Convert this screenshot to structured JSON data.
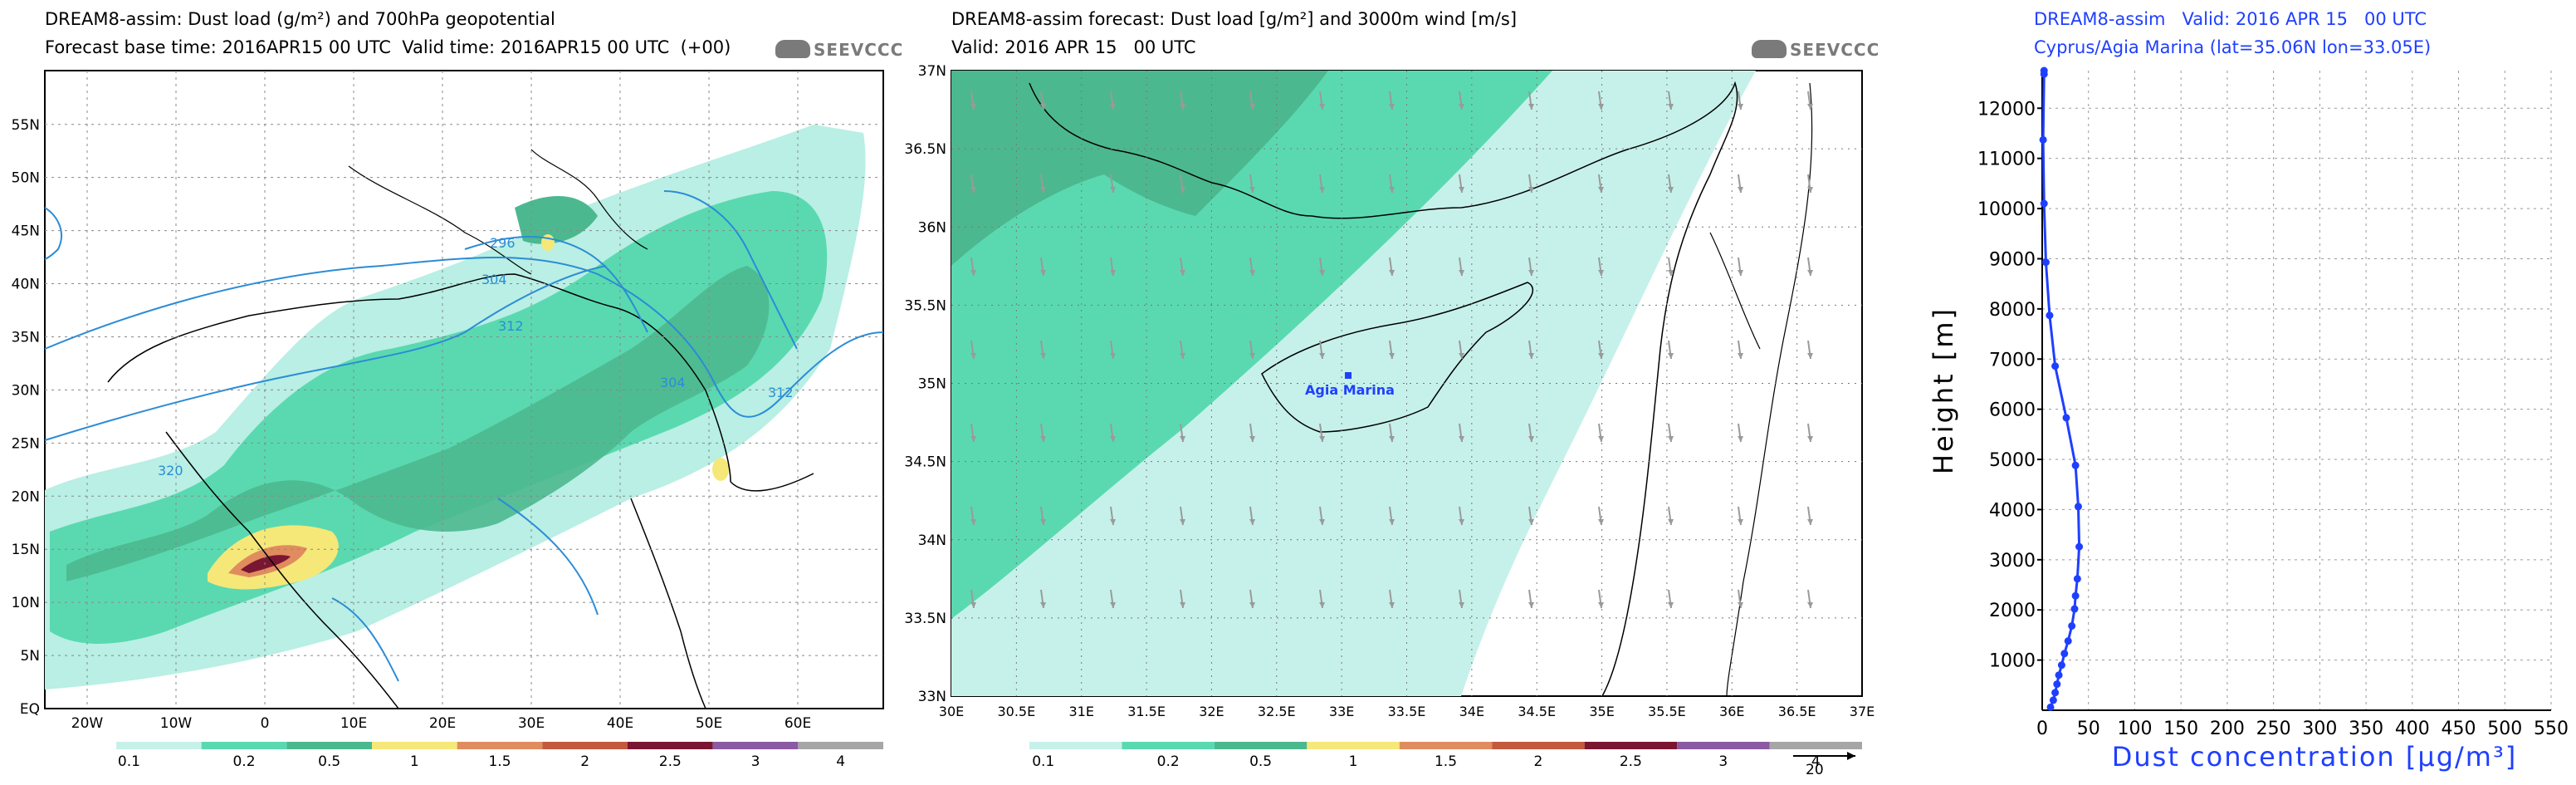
{
  "panel1": {
    "title": "DREAM8-assim: Dust load (g/m²) and 700hPa geopotential",
    "subtitle": "Forecast base time: 2016APR15 00 UTC  Valid time: 2016APR15 00 UTC  (+00)",
    "logo": "SEEVCCC",
    "lat_labels": [
      "EQ",
      "5N",
      "10N",
      "15N",
      "20N",
      "25N",
      "30N",
      "35N",
      "40N",
      "45N",
      "50N",
      "55N"
    ],
    "lon_labels": [
      "20W",
      "10W",
      "0",
      "10E",
      "20E",
      "30E",
      "40E",
      "50E",
      "60E"
    ],
    "contour_labels": [
      "296",
      "304",
      "312",
      "320",
      "304",
      "312"
    ],
    "colorbar": [
      "0.1",
      "0.2",
      "0.5",
      "1",
      "1.5",
      "2",
      "2.5",
      "3",
      "4"
    ]
  },
  "panel2": {
    "title": "DREAM8-assim forecast: Dust load [g/m²] and 3000m wind [m/s]",
    "subtitle": "Valid: 2016 APR 15   00 UTC",
    "logo": "SEEVCCC",
    "lat_labels": [
      "33N",
      "33.5N",
      "34N",
      "34.5N",
      "35N",
      "35.5N",
      "36N",
      "36.5N",
      "37N"
    ],
    "lon_labels": [
      "30E",
      "30.5E",
      "31E",
      "31.5E",
      "32E",
      "32.5E",
      "33E",
      "33.5E",
      "34E",
      "34.5E",
      "35E",
      "35.5E",
      "36E",
      "36.5E",
      "37E"
    ],
    "station": "Agia  Marina",
    "colorbar": [
      "0.1",
      "0.2",
      "0.5",
      "1",
      "1.5",
      "2",
      "2.5",
      "3",
      "4"
    ],
    "wind_ref": "20"
  },
  "chart_data": {
    "type": "line",
    "title": "DREAM8-assim   Valid: 2016 APR 15   00 UTC",
    "subtitle": "Cyprus/Agia Marina (lat=35.06N lon=33.05E)",
    "xlabel": "Dust concentration [µg/m³]",
    "ylabel": "Height [m]",
    "xlim": [
      0,
      550
    ],
    "ylim": [
      0,
      12750
    ],
    "x_ticks": [
      "0",
      "50",
      "100",
      "150",
      "200",
      "250",
      "300",
      "350",
      "400",
      "450",
      "500",
      "550"
    ],
    "y_ticks": [
      "1000",
      "2000",
      "3000",
      "4000",
      "5000",
      "6000",
      "7000",
      "8000",
      "9000",
      "10000",
      "11000",
      "12000"
    ],
    "x": [
      9,
      12,
      14,
      16,
      18,
      21,
      24,
      28,
      32,
      35,
      36,
      38,
      40,
      39,
      36,
      26,
      14,
      8,
      4,
      2,
      1,
      2,
      2
    ],
    "y": [
      60,
      200,
      350,
      520,
      700,
      900,
      1130,
      1380,
      1680,
      2020,
      2280,
      2620,
      3260,
      4060,
      4880,
      5830,
      6860,
      7870,
      8930,
      10100,
      11370,
      12680,
      12750
    ],
    "line_color": "#1f3fff"
  }
}
